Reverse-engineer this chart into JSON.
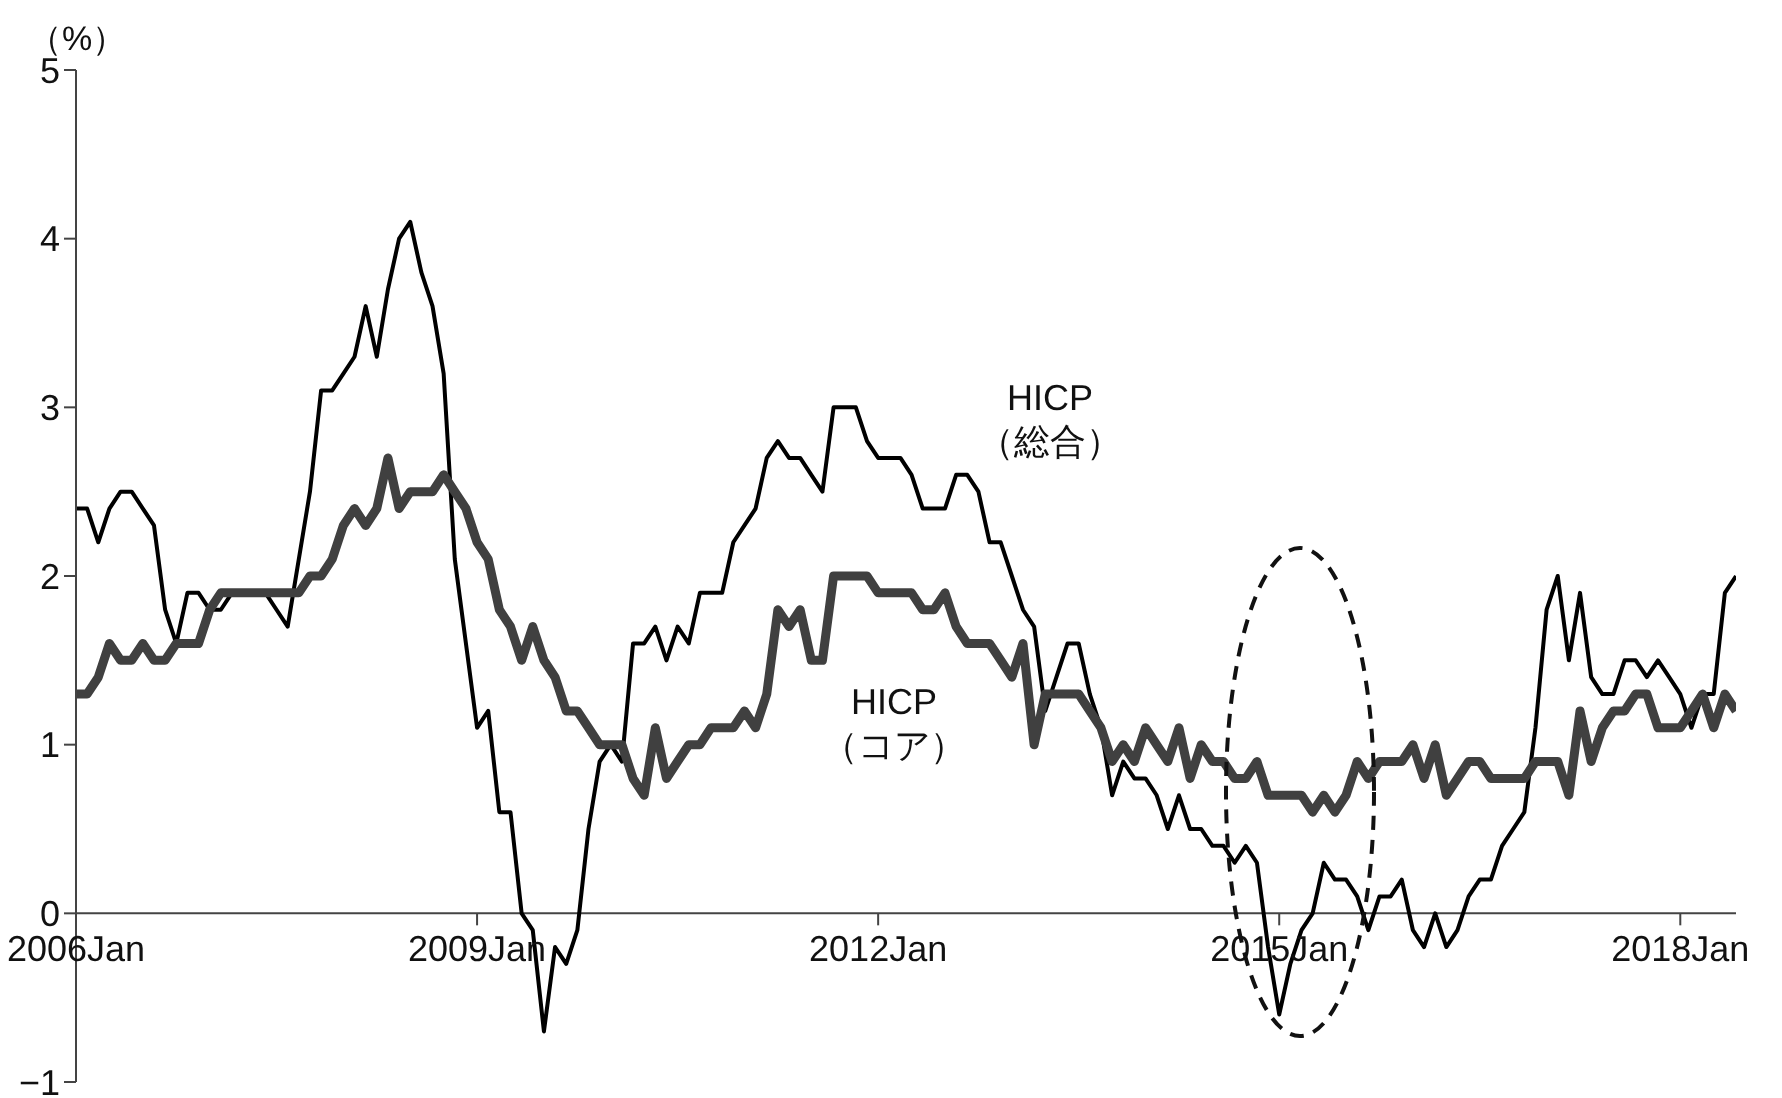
{
  "chart_data": {
    "type": "line",
    "ylabel": "（%）",
    "x": [
      "2006-01",
      "2006-02",
      "2006-03",
      "2006-04",
      "2006-05",
      "2006-06",
      "2006-07",
      "2006-08",
      "2006-09",
      "2006-10",
      "2006-11",
      "2006-12",
      "2007-01",
      "2007-02",
      "2007-03",
      "2007-04",
      "2007-05",
      "2007-06",
      "2007-07",
      "2007-08",
      "2007-09",
      "2007-10",
      "2007-11",
      "2007-12",
      "2008-01",
      "2008-02",
      "2008-03",
      "2008-04",
      "2008-05",
      "2008-06",
      "2008-07",
      "2008-08",
      "2008-09",
      "2008-10",
      "2008-11",
      "2008-12",
      "2009-01",
      "2009-02",
      "2009-03",
      "2009-04",
      "2009-05",
      "2009-06",
      "2009-07",
      "2009-08",
      "2009-09",
      "2009-10",
      "2009-11",
      "2009-12",
      "2010-01",
      "2010-02",
      "2010-03",
      "2010-04",
      "2010-05",
      "2010-06",
      "2010-07",
      "2010-08",
      "2010-09",
      "2010-10",
      "2010-11",
      "2010-12",
      "2011-01",
      "2011-02",
      "2011-03",
      "2011-04",
      "2011-05",
      "2011-06",
      "2011-07",
      "2011-08",
      "2011-09",
      "2011-10",
      "2011-11",
      "2011-12",
      "2012-01",
      "2012-02",
      "2012-03",
      "2012-04",
      "2012-05",
      "2012-06",
      "2012-07",
      "2012-08",
      "2012-09",
      "2012-10",
      "2012-11",
      "2012-12",
      "2013-01",
      "2013-02",
      "2013-03",
      "2013-04",
      "2013-05",
      "2013-06",
      "2013-07",
      "2013-08",
      "2013-09",
      "2013-10",
      "2013-11",
      "2013-12",
      "2014-01",
      "2014-02",
      "2014-03",
      "2014-04",
      "2014-05",
      "2014-06",
      "2014-07",
      "2014-08",
      "2014-09",
      "2014-10",
      "2014-11",
      "2014-12",
      "2015-01",
      "2015-02",
      "2015-03",
      "2015-04",
      "2015-05",
      "2015-06",
      "2015-07",
      "2015-08",
      "2015-09",
      "2015-10",
      "2015-11",
      "2015-12",
      "2016-01",
      "2016-02",
      "2016-03",
      "2016-04",
      "2016-05",
      "2016-06",
      "2016-07",
      "2016-08",
      "2016-09",
      "2016-10",
      "2016-11",
      "2016-12",
      "2017-01",
      "2017-02",
      "2017-03",
      "2017-04",
      "2017-05",
      "2017-06",
      "2017-07",
      "2017-08",
      "2017-09",
      "2017-10",
      "2017-11",
      "2017-12",
      "2018-01",
      "2018-02",
      "2018-03",
      "2018-04",
      "2018-05",
      "2018-06"
    ],
    "series": [
      {
        "name": "HICP\n（総合）",
        "color": "#000000",
        "values": [
          2.4,
          2.4,
          2.2,
          2.4,
          2.5,
          2.5,
          2.4,
          2.3,
          1.8,
          1.6,
          1.9,
          1.9,
          1.8,
          1.8,
          1.9,
          1.9,
          1.9,
          1.9,
          1.8,
          1.7,
          2.1,
          2.5,
          3.1,
          3.1,
          3.2,
          3.3,
          3.6,
          3.3,
          3.7,
          4.0,
          4.1,
          3.8,
          3.6,
          3.2,
          2.1,
          1.6,
          1.1,
          1.2,
          0.6,
          0.6,
          0.0,
          -0.1,
          -0.7,
          -0.2,
          -0.3,
          -0.1,
          0.5,
          0.9,
          1.0,
          0.9,
          1.6,
          1.6,
          1.7,
          1.5,
          1.7,
          1.6,
          1.9,
          1.9,
          1.9,
          2.2,
          2.3,
          2.4,
          2.7,
          2.8,
          2.7,
          2.7,
          2.6,
          2.5,
          3.0,
          3.0,
          3.0,
          2.8,
          2.7,
          2.7,
          2.7,
          2.6,
          2.4,
          2.4,
          2.4,
          2.6,
          2.6,
          2.5,
          2.2,
          2.2,
          2.0,
          1.8,
          1.7,
          1.2,
          1.4,
          1.6,
          1.6,
          1.3,
          1.1,
          0.7,
          0.9,
          0.8,
          0.8,
          0.7,
          0.5,
          0.7,
          0.5,
          0.5,
          0.4,
          0.4,
          0.3,
          0.4,
          0.3,
          -0.2,
          -0.6,
          -0.3,
          -0.1,
          0.0,
          0.3,
          0.2,
          0.2,
          0.1,
          -0.1,
          0.1,
          0.1,
          0.2,
          -0.1,
          -0.2,
          0.0,
          -0.2,
          -0.1,
          0.1,
          0.2,
          0.2,
          0.4,
          0.5,
          0.6,
          1.1,
          1.8,
          2.0,
          1.5,
          1.9,
          1.4,
          1.3,
          1.3,
          1.5,
          1.5,
          1.4,
          1.5,
          1.4,
          1.3,
          1.1,
          1.3,
          1.3,
          1.9,
          2.0
        ]
      },
      {
        "name": "HICP\n（コア）",
        "color": "#404040",
        "values": [
          1.3,
          1.3,
          1.4,
          1.6,
          1.5,
          1.5,
          1.6,
          1.5,
          1.5,
          1.6,
          1.6,
          1.6,
          1.8,
          1.9,
          1.9,
          1.9,
          1.9,
          1.9,
          1.9,
          1.9,
          1.9,
          2.0,
          2.0,
          2.1,
          2.3,
          2.4,
          2.3,
          2.4,
          2.7,
          2.4,
          2.5,
          2.5,
          2.5,
          2.6,
          2.5,
          2.4,
          2.2,
          2.1,
          1.8,
          1.7,
          1.5,
          1.7,
          1.5,
          1.4,
          1.2,
          1.2,
          1.1,
          1.0,
          1.0,
          1.0,
          0.8,
          0.7,
          1.1,
          0.8,
          0.9,
          1.0,
          1.0,
          1.1,
          1.1,
          1.1,
          1.2,
          1.1,
          1.3,
          1.8,
          1.7,
          1.8,
          1.5,
          1.5,
          2.0,
          2.0,
          2.0,
          2.0,
          1.9,
          1.9,
          1.9,
          1.9,
          1.8,
          1.8,
          1.9,
          1.7,
          1.6,
          1.6,
          1.6,
          1.5,
          1.4,
          1.6,
          1.0,
          1.3,
          1.3,
          1.3,
          1.3,
          1.2,
          1.1,
          0.9,
          1.0,
          0.9,
          1.1,
          1.0,
          0.9,
          1.1,
          0.8,
          1.0,
          0.9,
          0.9,
          0.8,
          0.8,
          0.9,
          0.7,
          0.7,
          0.7,
          0.7,
          0.6,
          0.7,
          0.6,
          0.7,
          0.9,
          0.8,
          0.9,
          0.9,
          0.9,
          1.0,
          0.8,
          1.0,
          0.7,
          0.8,
          0.9,
          0.9,
          0.8,
          0.8,
          0.8,
          0.8,
          0.9,
          0.9,
          0.9,
          0.7,
          1.2,
          0.9,
          1.1,
          1.2,
          1.2,
          1.3,
          1.3,
          1.1,
          1.1,
          1.1,
          1.2,
          1.3,
          1.1,
          1.3,
          1.2
        ]
      }
    ],
    "xlim": [
      "2006-01",
      "2018-06"
    ],
    "xticks": [
      {
        "value": "2006-01",
        "label": "2006Jan"
      },
      {
        "value": "2009-01",
        "label": "2009Jan"
      },
      {
        "value": "2012-01",
        "label": "2012Jan"
      },
      {
        "value": "2015-01",
        "label": "2015Jan"
      },
      {
        "value": "2018-01",
        "label": "2018Jan"
      }
    ],
    "ylim": [
      -1,
      5
    ],
    "yticks": [
      {
        "value": -1,
        "label": "−1"
      },
      0,
      1,
      2,
      3,
      4,
      5
    ]
  }
}
